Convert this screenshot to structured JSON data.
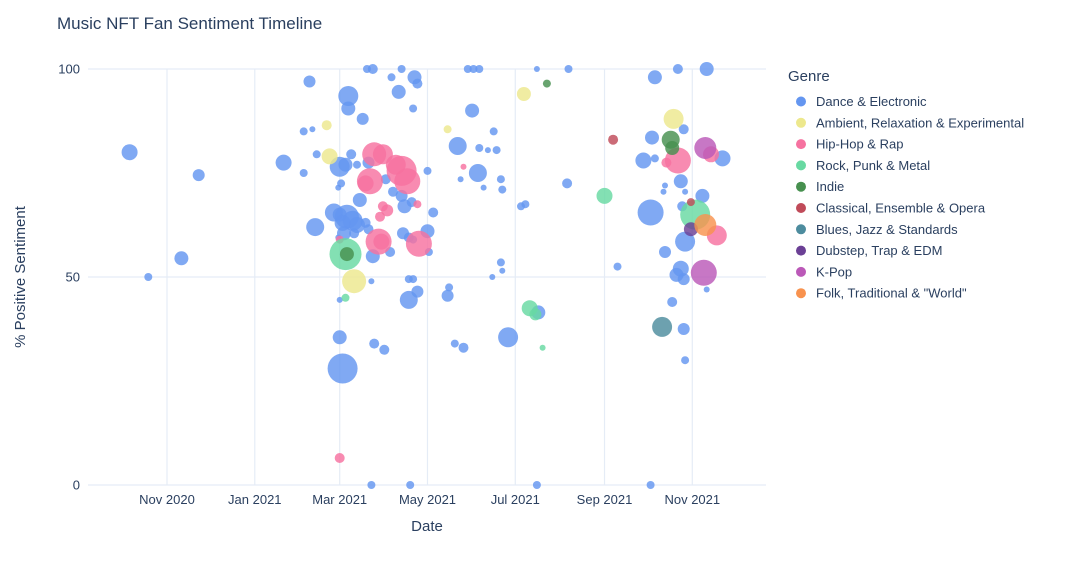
{
  "title": "Music NFT Fan Sentiment Timeline",
  "x_axis": {
    "title": "Date",
    "ticks": [
      {
        "label": "Nov 2020",
        "date": "2020-11-01"
      },
      {
        "label": "Jan 2021",
        "date": "2021-01-01"
      },
      {
        "label": "Mar 2021",
        "date": "2021-03-01"
      },
      {
        "label": "May 2021",
        "date": "2021-05-01"
      },
      {
        "label": "Jul 2021",
        "date": "2021-07-01"
      },
      {
        "label": "Sep 2021",
        "date": "2021-09-01"
      },
      {
        "label": "Nov 2021",
        "date": "2021-11-01"
      }
    ]
  },
  "y_axis": {
    "title": "% Positive Sentiment",
    "ticks": [
      {
        "label": "0",
        "value": 0
      },
      {
        "label": "50",
        "value": 50
      },
      {
        "label": "100",
        "value": 100
      }
    ],
    "range": [
      0,
      100
    ]
  },
  "legend": {
    "title": "Genre"
  },
  "colors": {
    "text": "#2a3f5f",
    "grid": "#e5ecf6",
    "background": "#ffffff"
  },
  "chart_data": {
    "type": "scatter",
    "subtype": "bubble",
    "x_range": [
      "2020-09-08",
      "2021-12-15"
    ],
    "y_range": [
      0,
      100
    ],
    "legend_position": "right",
    "grid": true,
    "series": [
      {
        "name": "Dance & Electronic",
        "color": "#6496F0",
        "points": [
          [
            "2020-10-06",
            80,
            8
          ],
          [
            "2020-11-23",
            74.5,
            6
          ],
          [
            "2020-10-19",
            50,
            4
          ],
          [
            "2020-11-11",
            54.5,
            7
          ],
          [
            "2021-01-21",
            77.5,
            8
          ],
          [
            "2021-02-08",
            97,
            6
          ],
          [
            "2021-02-10",
            85.5,
            3
          ],
          [
            "2021-02-04",
            85,
            4
          ],
          [
            "2021-02-13",
            79.5,
            4
          ],
          [
            "2021-02-04",
            75,
            4
          ],
          [
            "2021-03-01",
            65,
            7
          ],
          [
            "2021-02-12",
            62,
            9
          ],
          [
            "2021-02-25",
            65.5,
            9
          ],
          [
            "2021-03-01",
            76.5,
            10
          ],
          [
            "2021-03-05",
            77,
            7
          ],
          [
            "2021-03-13",
            77,
            4
          ],
          [
            "2021-03-09",
            79.5,
            5
          ],
          [
            "2021-03-07",
            93.5,
            10
          ],
          [
            "2021-03-07",
            90.5,
            7
          ],
          [
            "2021-03-17",
            88,
            6
          ],
          [
            "2021-03-20",
            100,
            4
          ],
          [
            "2021-03-24",
            100,
            5
          ],
          [
            "2021-04-13",
            100,
            4
          ],
          [
            "2021-04-06",
            98,
            4
          ],
          [
            "2021-04-22",
            98,
            7
          ],
          [
            "2021-04-24",
            96.5,
            5
          ],
          [
            "2021-04-11",
            94.5,
            7
          ],
          [
            "2021-04-21",
            90.5,
            4
          ],
          [
            "2021-03-02",
            72.5,
            4
          ],
          [
            "2021-02-28",
            71.5,
            3
          ],
          [
            "2021-03-15",
            68.5,
            7
          ],
          [
            "2021-03-21",
            77.5,
            6
          ],
          [
            "2021-04-02",
            73.5,
            5
          ],
          [
            "2021-04-07",
            70.5,
            5
          ],
          [
            "2021-04-13",
            69.5,
            6
          ],
          [
            "2021-04-15",
            67,
            7
          ],
          [
            "2021-04-20",
            68,
            5
          ],
          [
            "2021-05-01",
            75.5,
            4
          ],
          [
            "2021-05-05",
            65.5,
            5
          ],
          [
            "2021-03-06",
            64.5,
            12
          ],
          [
            "2021-03-10",
            63.5,
            10
          ],
          [
            "2021-03-03",
            63,
            8
          ],
          [
            "2021-03-13",
            62.5,
            8
          ],
          [
            "2021-03-19",
            63,
            5
          ],
          [
            "2021-03-21",
            61.5,
            5
          ],
          [
            "2021-03-24",
            55,
            7
          ],
          [
            "2021-04-05",
            56,
            5
          ],
          [
            "2021-04-14",
            60.5,
            6
          ],
          [
            "2021-04-18",
            59.5,
            5
          ],
          [
            "2021-04-21",
            59,
            4
          ],
          [
            "2021-05-01",
            61,
            7
          ],
          [
            "2021-02-28",
            59.5,
            3
          ],
          [
            "2021-03-04",
            60.5,
            7
          ],
          [
            "2021-03-11",
            60.5,
            5
          ],
          [
            "2021-03-23",
            49,
            3
          ],
          [
            "2021-04-18",
            49.5,
            4
          ],
          [
            "2021-04-21",
            49.5,
            4
          ],
          [
            "2021-05-16",
            47.5,
            4
          ],
          [
            "2021-05-02",
            56,
            4
          ],
          [
            "2021-06-15",
            50,
            3
          ],
          [
            "2021-06-21",
            53.5,
            4
          ],
          [
            "2021-06-22",
            51.5,
            3
          ],
          [
            "2021-05-22",
            81.5,
            9
          ],
          [
            "2021-06-06",
            81,
            4
          ],
          [
            "2021-06-12",
            80.5,
            3
          ],
          [
            "2021-06-18",
            80.5,
            4
          ],
          [
            "2021-06-16",
            85,
            4
          ],
          [
            "2021-06-01",
            90,
            7
          ],
          [
            "2021-05-29",
            100,
            4
          ],
          [
            "2021-06-02",
            100,
            4
          ],
          [
            "2021-06-06",
            100,
            4
          ],
          [
            "2021-06-05",
            75,
            9
          ],
          [
            "2021-05-24",
            73.5,
            3
          ],
          [
            "2021-06-09",
            71.5,
            3
          ],
          [
            "2021-06-21",
            73.5,
            4
          ],
          [
            "2021-06-22",
            71,
            4
          ],
          [
            "2021-07-05",
            67,
            4
          ],
          [
            "2021-07-08",
            67.5,
            4
          ],
          [
            "2021-07-16",
            100,
            3
          ],
          [
            "2021-08-07",
            100,
            4
          ],
          [
            "2021-08-06",
            72.5,
            5
          ],
          [
            "2021-07-17",
            41.5,
            7
          ],
          [
            "2021-07-16",
            0,
            4
          ],
          [
            "2021-06-26",
            35.5,
            10
          ],
          [
            "2021-05-20",
            34,
            4
          ],
          [
            "2021-05-26",
            33,
            5
          ],
          [
            "2021-03-01",
            35.5,
            7
          ],
          [
            "2021-03-25",
            34,
            5
          ],
          [
            "2021-04-01",
            32.5,
            5
          ],
          [
            "2021-03-03",
            28,
            15
          ],
          [
            "2021-03-23",
            0,
            4
          ],
          [
            "2021-04-19",
            0,
            4
          ],
          [
            "2021-04-18",
            44.5,
            9
          ],
          [
            "2021-04-24",
            46.5,
            6
          ],
          [
            "2021-05-15",
            45.5,
            6
          ],
          [
            "2021-03-01",
            44.5,
            3
          ],
          [
            "2021-09-10",
            52.5,
            4
          ],
          [
            "2021-10-06",
            98,
            7
          ],
          [
            "2021-10-22",
            100,
            5
          ],
          [
            "2021-11-11",
            100,
            7
          ],
          [
            "2021-10-26",
            85.5,
            5
          ],
          [
            "2021-10-04",
            83.5,
            7
          ],
          [
            "2021-09-28",
            78,
            8
          ],
          [
            "2021-10-06",
            78.5,
            4
          ],
          [
            "2021-11-22",
            78.5,
            8
          ],
          [
            "2021-10-24",
            73,
            7
          ],
          [
            "2021-10-27",
            70.5,
            3
          ],
          [
            "2021-11-08",
            69.5,
            7
          ],
          [
            "2021-10-25",
            67,
            5
          ],
          [
            "2021-10-03",
            65.5,
            13
          ],
          [
            "2021-10-27",
            58.5,
            10
          ],
          [
            "2021-10-13",
            56,
            6
          ],
          [
            "2021-10-24",
            52,
            8
          ],
          [
            "2021-10-21",
            50.5,
            7
          ],
          [
            "2021-10-26",
            49.5,
            6
          ],
          [
            "2021-11-11",
            47,
            3
          ],
          [
            "2021-10-18",
            44,
            5
          ],
          [
            "2021-10-26",
            37.5,
            6
          ],
          [
            "2021-10-27",
            30,
            4
          ],
          [
            "2021-10-03",
            0,
            4
          ],
          [
            "2021-10-13",
            72,
            3
          ],
          [
            "2021-10-12",
            70.5,
            3
          ]
        ]
      },
      {
        "name": "Ambient, Relaxation & Experimental",
        "color": "#EDE88D",
        "points": [
          [
            "2021-02-20",
            86.5,
            5
          ],
          [
            "2021-02-22",
            79,
            8
          ],
          [
            "2021-03-11",
            49,
            12
          ],
          [
            "2021-05-15",
            85.5,
            4
          ],
          [
            "2021-07-07",
            94,
            7
          ],
          [
            "2021-10-19",
            88,
            10
          ]
        ]
      },
      {
        "name": "Hip-Hop & Rap",
        "color": "#F672A0",
        "points": [
          [
            "2021-03-25",
            79.5,
            12
          ],
          [
            "2021-03-31",
            79.5,
            10
          ],
          [
            "2021-03-22",
            73,
            13
          ],
          [
            "2021-03-19",
            72.5,
            8
          ],
          [
            "2021-04-09",
            77,
            10
          ],
          [
            "2021-04-13",
            75.5,
            15
          ],
          [
            "2021-04-17",
            73,
            13
          ],
          [
            "2021-03-31",
            67,
            5
          ],
          [
            "2021-04-03",
            66,
            6
          ],
          [
            "2021-03-29",
            64.5,
            5
          ],
          [
            "2021-03-01",
            59,
            4
          ],
          [
            "2021-03-28",
            58.5,
            13
          ],
          [
            "2021-03-30",
            58.5,
            8
          ],
          [
            "2021-04-25",
            58,
            13
          ],
          [
            "2021-04-24",
            67.5,
            4
          ],
          [
            "2021-05-26",
            76.5,
            3
          ],
          [
            "2021-03-01",
            6.5,
            5
          ],
          [
            "2021-11-14",
            79.5,
            8
          ],
          [
            "2021-10-14",
            77.5,
            5
          ],
          [
            "2021-10-22",
            78,
            13
          ],
          [
            "2021-11-18",
            60,
            10
          ]
        ]
      },
      {
        "name": "Rock, Punk & Metal",
        "color": "#68D9A2",
        "points": [
          [
            "2021-03-05",
            55.5,
            16
          ],
          [
            "2021-07-11",
            42.5,
            8
          ],
          [
            "2021-07-15",
            41,
            6
          ],
          [
            "2021-07-20",
            33,
            3
          ],
          [
            "2021-03-05",
            45,
            4
          ],
          [
            "2021-09-01",
            69.5,
            8
          ],
          [
            "2021-11-03",
            65,
            15
          ]
        ]
      },
      {
        "name": "Indie",
        "color": "#47904F",
        "points": [
          [
            "2021-03-06",
            55.5,
            7
          ],
          [
            "2021-07-23",
            96.5,
            4
          ],
          [
            "2021-10-17",
            83,
            9
          ],
          [
            "2021-10-18",
            81,
            7
          ]
        ]
      },
      {
        "name": "Classical, Ensemble & Opera",
        "color": "#C04B59",
        "points": [
          [
            "2021-09-07",
            83,
            5
          ],
          [
            "2021-10-31",
            68,
            4
          ]
        ]
      },
      {
        "name": "Blues, Jazz & Standards",
        "color": "#4D8C9E",
        "points": [
          [
            "2021-10-11",
            38,
            10
          ]
        ]
      },
      {
        "name": "Dubstep, Trap & EDM",
        "color": "#6B4095",
        "points": [
          [
            "2021-10-31",
            61.5,
            7
          ]
        ]
      },
      {
        "name": "K-Pop",
        "color": "#BB59B8",
        "points": [
          [
            "2021-11-10",
            81,
            11
          ],
          [
            "2021-11-09",
            51,
            13
          ]
        ]
      },
      {
        "name": "Folk, Traditional & \"World\"",
        "color": "#F8924E",
        "points": [
          [
            "2021-11-10",
            62.5,
            11
          ]
        ]
      }
    ]
  }
}
